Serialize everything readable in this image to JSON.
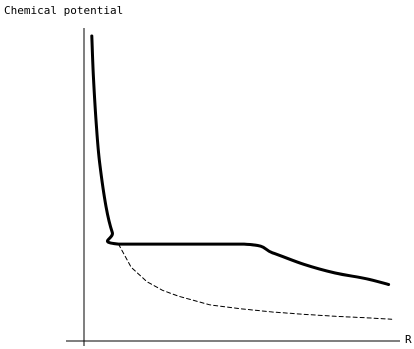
{
  "chart_data": {
    "type": "line",
    "title": "",
    "xlabel": "R",
    "ylabel": "Chemical potential",
    "grid": false,
    "legend": "none",
    "x_ticks": [],
    "y_ticks": [],
    "xlim": [
      0,
      1
    ],
    "ylim": [
      0,
      1
    ],
    "series": [
      {
        "style": "solid",
        "color": "#000000",
        "x": [
          0.025,
          0.03,
          0.04,
          0.05,
          0.07,
          0.09,
          0.11,
          0.51,
          0.6,
          0.7,
          0.8,
          0.9,
          0.97
        ],
        "y": [
          1.0,
          0.86,
          0.68,
          0.56,
          0.41,
          0.32,
          0.28,
          0.28,
          0.25,
          0.21,
          0.18,
          0.16,
          0.14
        ]
      },
      {
        "style": "dashed",
        "color": "#000000",
        "x": [
          0.11,
          0.15,
          0.2,
          0.25,
          0.3,
          0.4,
          0.5,
          0.6,
          0.7,
          0.8,
          0.9,
          0.98
        ],
        "y": [
          0.28,
          0.2,
          0.15,
          0.12,
          0.1,
          0.07,
          0.056,
          0.045,
          0.037,
          0.03,
          0.025,
          0.02
        ]
      }
    ]
  }
}
